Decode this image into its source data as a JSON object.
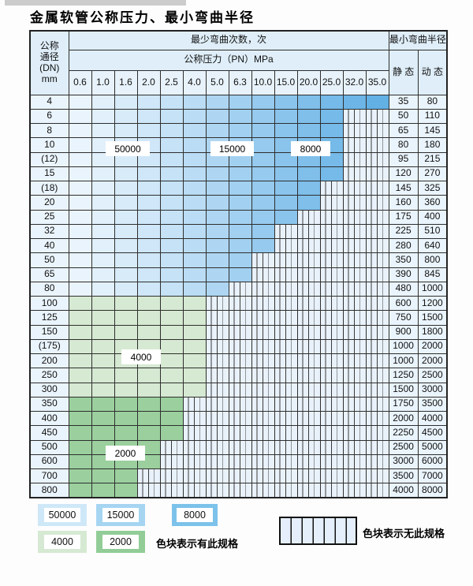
{
  "page": {
    "title": "金属软管公称压力、最小弯曲半径"
  },
  "table": {
    "header": {
      "dn_label": "公称\n通径\n(DN)\nmm",
      "bend_cycles": "最少弯曲次数，次",
      "pressure": "公称压力（PN）MPa",
      "pressure_values": [
        "0.6",
        "1.0",
        "1.6",
        "2.0",
        "2.5",
        "4.0",
        "5.0",
        "6.3",
        "10.0",
        "15.0",
        "20.0",
        "25.0",
        "32.0",
        "35.0"
      ],
      "radius": "最小弯曲半径",
      "static_label": "静 态",
      "dynamic_label": "动 态"
    },
    "rows": [
      {
        "dn": "4",
        "span": 14,
        "palette": "blue",
        "static": "35",
        "dynamic": "80"
      },
      {
        "dn": "6",
        "span": 12,
        "palette": "blue",
        "static": "50",
        "dynamic": "110"
      },
      {
        "dn": "8",
        "span": 12,
        "palette": "blue",
        "static": "65",
        "dynamic": "145"
      },
      {
        "dn": "10",
        "span": 12,
        "palette": "blue",
        "static": "80",
        "dynamic": "180"
      },
      {
        "dn": "(12)",
        "span": 12,
        "palette": "blue",
        "static": "95",
        "dynamic": "215"
      },
      {
        "dn": "15",
        "span": 12,
        "palette": "blue",
        "static": "120",
        "dynamic": "270"
      },
      {
        "dn": "(18)",
        "span": 11,
        "palette": "blue",
        "static": "145",
        "dynamic": "325"
      },
      {
        "dn": "20",
        "span": 11,
        "palette": "blue",
        "static": "160",
        "dynamic": "360"
      },
      {
        "dn": "25",
        "span": 10,
        "palette": "blue",
        "static": "175",
        "dynamic": "400"
      },
      {
        "dn": "32",
        "span": 9,
        "palette": "blue",
        "static": "225",
        "dynamic": "510"
      },
      {
        "dn": "40",
        "span": 9,
        "palette": "blue",
        "static": "280",
        "dynamic": "640"
      },
      {
        "dn": "50",
        "span": 8,
        "palette": "blue",
        "static": "350",
        "dynamic": "800"
      },
      {
        "dn": "65",
        "span": 8,
        "palette": "blue",
        "static": "390",
        "dynamic": "845"
      },
      {
        "dn": "80",
        "span": 7,
        "palette": "blue",
        "static": "480",
        "dynamic": "1000"
      },
      {
        "dn": "100",
        "span": 6,
        "palette": "green_light",
        "static": "600",
        "dynamic": "1200"
      },
      {
        "dn": "125",
        "span": 6,
        "palette": "green_light",
        "static": "750",
        "dynamic": "1500"
      },
      {
        "dn": "150",
        "span": 6,
        "palette": "green_light",
        "static": "900",
        "dynamic": "1800"
      },
      {
        "dn": "(175)",
        "span": 6,
        "palette": "green_light",
        "static": "1000",
        "dynamic": "2000"
      },
      {
        "dn": "200",
        "span": 6,
        "palette": "green_light",
        "static": "1000",
        "dynamic": "2000"
      },
      {
        "dn": "250",
        "span": 6,
        "palette": "green_light",
        "static": "1250",
        "dynamic": "2500"
      },
      {
        "dn": "300",
        "span": 6,
        "palette": "green_light",
        "static": "1500",
        "dynamic": "3000"
      },
      {
        "dn": "350",
        "span": 5,
        "palette": "green_dark",
        "static": "1750",
        "dynamic": "3500"
      },
      {
        "dn": "400",
        "span": 5,
        "palette": "green_dark",
        "static": "2000",
        "dynamic": "4000"
      },
      {
        "dn": "450",
        "span": 5,
        "palette": "green_dark",
        "static": "2250",
        "dynamic": "4500"
      },
      {
        "dn": "500",
        "span": 4,
        "palette": "green_dark",
        "static": "2500",
        "dynamic": "5000"
      },
      {
        "dn": "600",
        "span": 4,
        "palette": "green_dark",
        "static": "3000",
        "dynamic": "6000"
      },
      {
        "dn": "700",
        "span": 3,
        "palette": "green_dark",
        "static": "3500",
        "dynamic": "7000"
      },
      {
        "dn": "800",
        "span": 3,
        "palette": "green_dark",
        "static": "4000",
        "dynamic": "8000"
      }
    ]
  },
  "overlay_labels": [
    {
      "text": "50000"
    },
    {
      "text": "15000"
    },
    {
      "text": "8000"
    },
    {
      "text": "4000"
    },
    {
      "text": "2000"
    }
  ],
  "legend": {
    "items": [
      {
        "label": "50000",
        "color": "#cfe8f8"
      },
      {
        "label": "15000",
        "color": "#a6d5f2"
      },
      {
        "label": "8000",
        "color": "#7cc2ea"
      },
      {
        "label": "4000",
        "color": "#d6e9d2"
      },
      {
        "label": "2000",
        "color": "#92cd98"
      }
    ],
    "has_spec": "色块表示有此规格",
    "no_spec": "色块表示无此规格"
  },
  "colors": {
    "blue_shades": [
      "#eaf4fc",
      "#e1f0fb",
      "#d8ebf9",
      "#cfe7f8",
      "#c5e2f6",
      "#badcf4",
      "#aed6f2",
      "#a2d0f0",
      "#96caee",
      "#8ac4ec",
      "#7fbfea",
      "#75bae8",
      "#6cb5e6",
      "#63b0e4"
    ],
    "green_light": "#d6e9d2",
    "green_dark": "#9bd09e"
  }
}
